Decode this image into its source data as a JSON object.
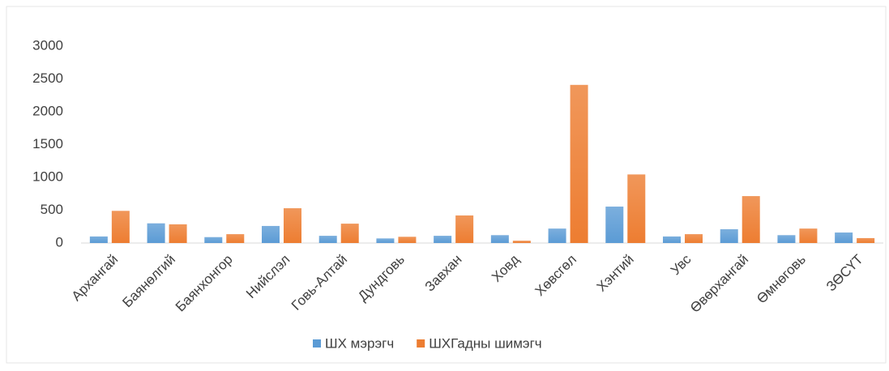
{
  "chart_data": {
    "type": "bar",
    "categories": [
      "Архангай",
      "Баянөлгий",
      "Баянхонгор",
      "Нийслэл",
      "Говь-Алтай",
      "Дундговь",
      "Завхан",
      "Ховд",
      "Хөвсгөл",
      "Хэнтий",
      "Увс",
      "Өвөрхангай",
      "Өмнөговь",
      "ЗӨСҮТ"
    ],
    "series": [
      {
        "name": "ШХ мэрэгч",
        "color": "#5b9bd5",
        "values": [
          100,
          300,
          90,
          260,
          110,
          70,
          110,
          120,
          220,
          555,
          100,
          210,
          120,
          160
        ]
      },
      {
        "name": "ШХГадны шимэгч",
        "color": "#ed7d31",
        "values": [
          490,
          285,
          135,
          530,
          295,
          95,
          420,
          35,
          2410,
          1045,
          135,
          715,
          220,
          75
        ]
      }
    ],
    "ylim": [
      0,
      3000
    ],
    "yticks": [
      0,
      500,
      1000,
      1500,
      2000,
      2500,
      3000
    ],
    "grid": false,
    "legend": "bottom"
  }
}
